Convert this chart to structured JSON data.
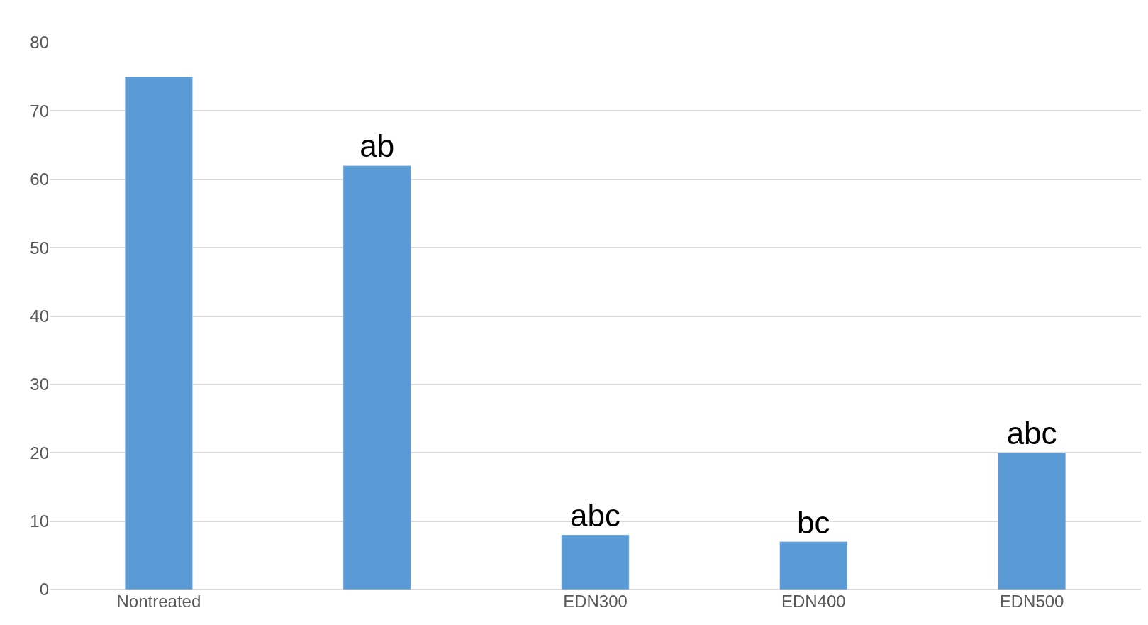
{
  "chart_data": {
    "type": "bar",
    "categories": [
      "Nontreated",
      null,
      "EDN300",
      "EDN400",
      "EDN500"
    ],
    "values": [
      75,
      62,
      8,
      7,
      20
    ],
    "value_labels": [
      null,
      "ab",
      "abc",
      "bc",
      "abc"
    ],
    "color": "#5b9bd5",
    "ylim": [
      0,
      80
    ],
    "yticks": [
      0,
      10,
      20,
      30,
      40,
      50,
      60,
      70,
      80
    ],
    "grid": "y",
    "legend": false
  }
}
